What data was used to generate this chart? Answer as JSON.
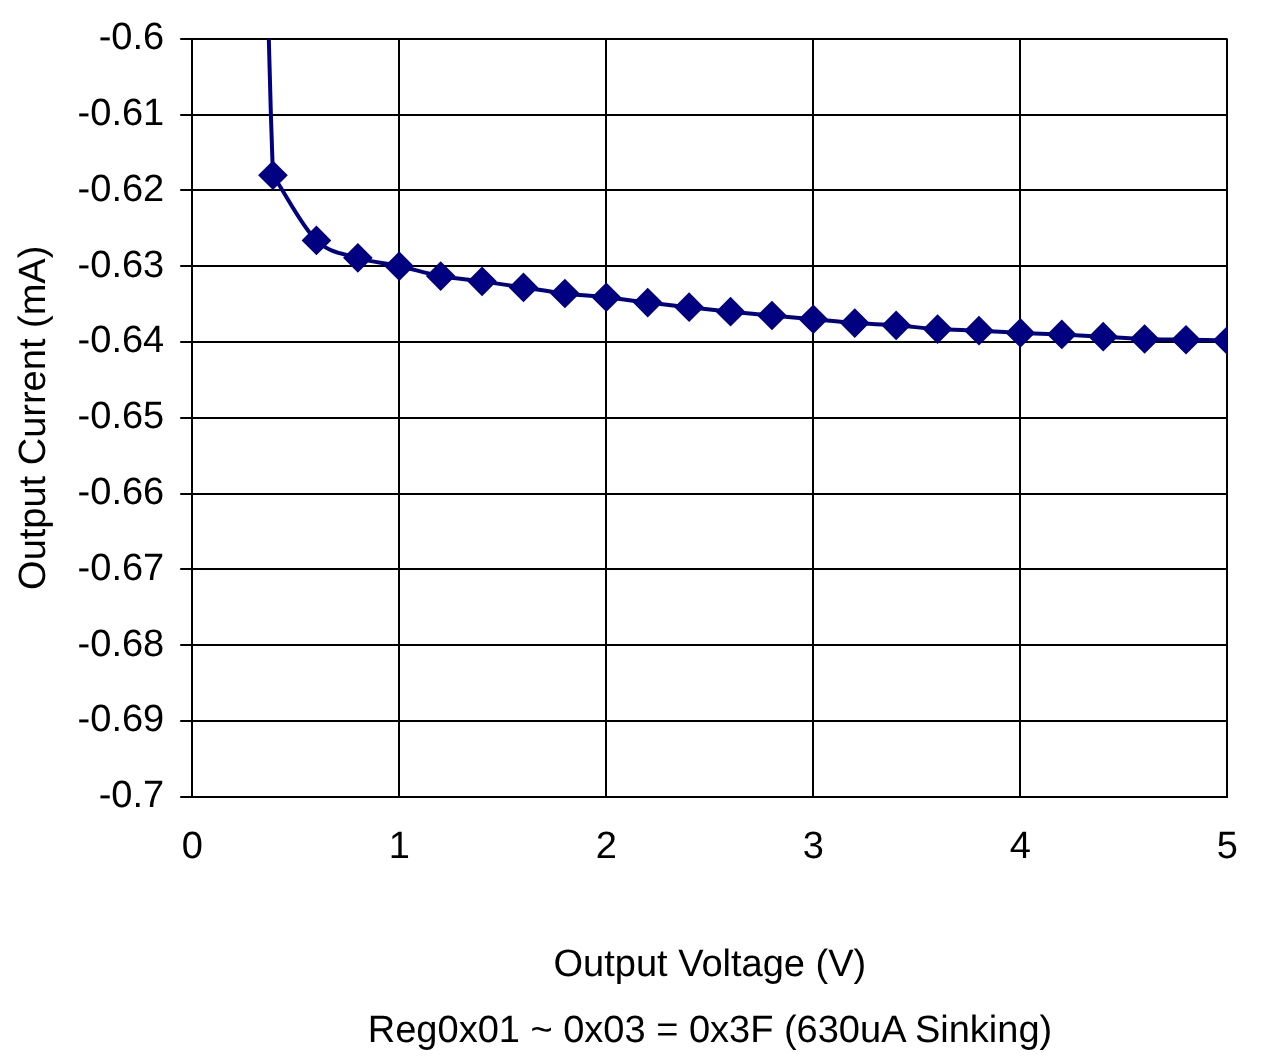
{
  "chart_data": {
    "type": "line",
    "xlabel": "Output Voltage (V)",
    "ylabel": "Output Current (mA)",
    "annotations": [
      "Reg0x01 ~ 0x03 = 0x3F (630uA Sinking)"
    ],
    "series": [
      {
        "color": "#000080",
        "marker": "none",
        "x": [
          0.37,
          0.38,
          0.39
        ],
        "values": [
          -0.6,
          -0.61,
          -0.618
        ]
      },
      {
        "color": "#000080",
        "marker": "diamond",
        "x": [
          0.39,
          0.6,
          0.8,
          1.0,
          1.2,
          1.4,
          1.6,
          1.8,
          2.0,
          2.2,
          2.4,
          2.6,
          2.8,
          3.0,
          3.2,
          3.4,
          3.6,
          3.8,
          4.0,
          4.2,
          4.4,
          4.6,
          4.8,
          5.0
        ],
        "values": [
          -0.618,
          -0.6266,
          -0.6289,
          -0.63,
          -0.6313,
          -0.632,
          -0.6328,
          -0.6336,
          -0.6341,
          -0.6348,
          -0.6354,
          -0.636,
          -0.6365,
          -0.637,
          -0.6375,
          -0.6378,
          -0.6383,
          -0.6385,
          -0.6388,
          -0.639,
          -0.6393,
          -0.6396,
          -0.6397,
          -0.6398
        ]
      }
    ],
    "xlim": [
      0,
      5
    ],
    "xticks": [
      0,
      1,
      2,
      3,
      4,
      5
    ],
    "ylim": [
      -0.7,
      -0.6
    ],
    "yticks": [
      -0.7,
      -0.69,
      -0.68,
      -0.67,
      -0.66,
      -0.65,
      -0.64,
      -0.63,
      -0.62,
      -0.61,
      -0.6
    ],
    "grid": true,
    "legend": false
  }
}
